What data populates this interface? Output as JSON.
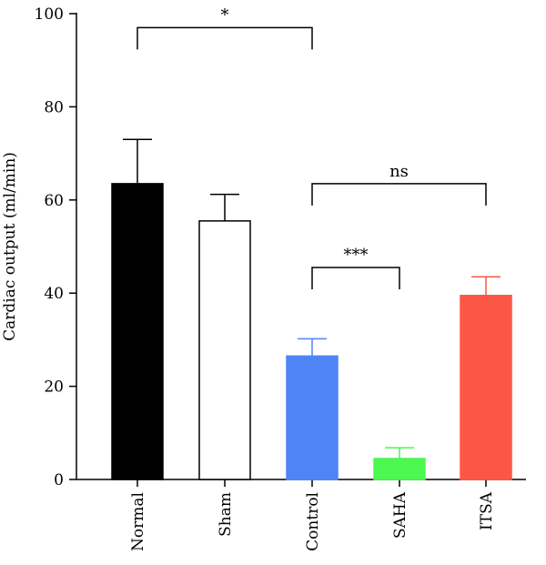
{
  "chart_data": {
    "type": "bar",
    "ylabel": "Cardiac output (ml/min)",
    "ylim": [
      0,
      100
    ],
    "yticks": [
      0,
      20,
      40,
      60,
      80,
      100
    ],
    "categories": [
      "Normal",
      "Sham",
      "Control",
      "SAHA",
      "ITSA"
    ],
    "values": [
      63.5,
      55.5,
      26.5,
      4.5,
      39.5
    ],
    "errors": [
      9.5,
      5.7,
      3.7,
      2.3,
      4.0
    ],
    "colors": [
      "#000000",
      "#ffffff",
      "#4f84f6",
      "#4cf850",
      "#fc5646"
    ],
    "significance": [
      {
        "from": 0,
        "to": 2,
        "label": "*",
        "y": 97
      },
      {
        "from": 2,
        "to": 4,
        "label": "ns",
        "y": 63.5
      },
      {
        "from": 2,
        "to": 3,
        "label": "***",
        "y": 45.5
      }
    ]
  }
}
